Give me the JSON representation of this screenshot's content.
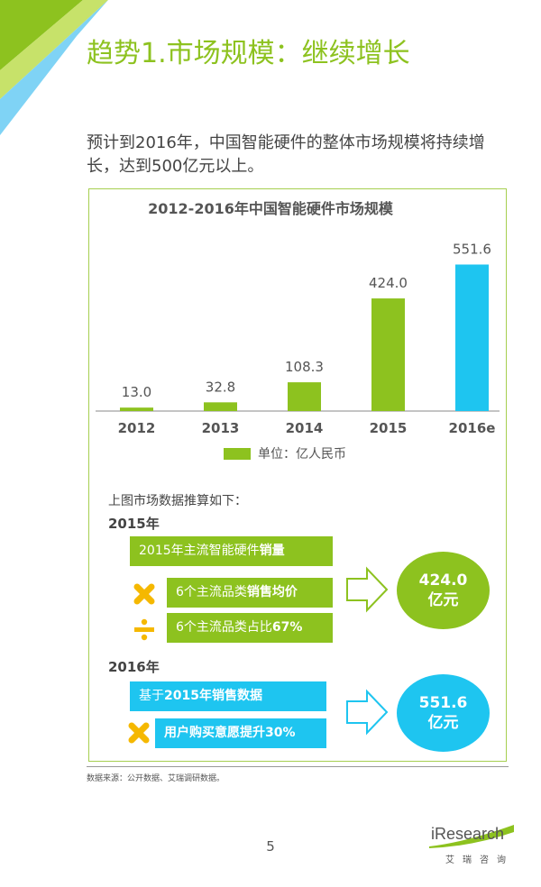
{
  "page": {
    "title": "趋势1.市场规模：继续增长",
    "intro": "预计到2016年，中国智能硬件的整体市场规模将持续增长，达到500亿元以上。",
    "page_number": "5",
    "source": "数据来源：公开数据、艾瑞调研数据。",
    "logo_main": "iResearch",
    "logo_sub": "艾瑞咨询"
  },
  "chart_data": {
    "type": "bar",
    "title": "2012-2016年中国智能硬件市场规模",
    "categories": [
      "2012",
      "2013",
      "2014",
      "2015",
      "2016e"
    ],
    "values": [
      13.0,
      32.8,
      108.3,
      424.0,
      551.6
    ],
    "value_labels": [
      "13.0",
      "32.8",
      "108.3",
      "424.0",
      "551.6"
    ],
    "bar_colors": [
      "#8dc21f",
      "#8dc21f",
      "#8dc21f",
      "#8dc21f",
      "#1ec5f0"
    ],
    "legend": "单位：亿人民币",
    "legend_placement": "bottom",
    "ylim": [
      0,
      560
    ],
    "grid": false
  },
  "calc": {
    "note": "上图市场数据推算如下：",
    "y2015": {
      "year": "2015年",
      "box1_plain": "2015年主流智能硬件",
      "box1_bold": "销量",
      "box2_plain": "6个主流品类",
      "box2_bold": "销售均价",
      "box3_plain": "6个主流品类占比",
      "box3_bold": "67%",
      "result_value": "424.0",
      "result_unit": "亿元"
    },
    "y2016": {
      "year": "2016年",
      "box1_plain": "基于",
      "box1_bold": "2015年销售数据",
      "box2_bold": "用户购买意愿提升30%",
      "result_value": "551.6",
      "result_unit": "亿元"
    },
    "colors": {
      "green": "#8dc21f",
      "blue": "#1ec5f0",
      "operator": "#f5b800"
    }
  }
}
